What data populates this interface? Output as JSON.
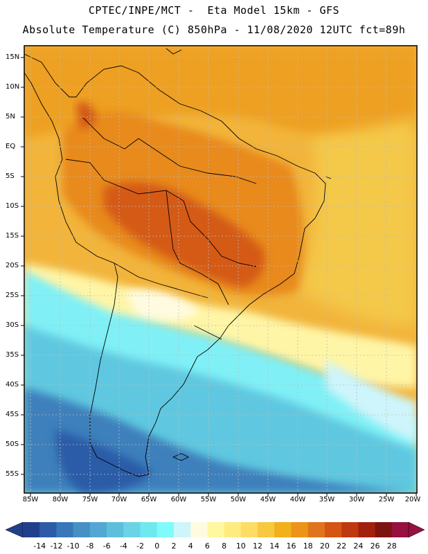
{
  "title_line1": "CPTEC/INPE/MCT -  Eta Model 15km - GFS",
  "title_line2": "Absolute Temperature (C) 850hPa - 11/08/2020 12UTC fct=89h",
  "lat_labels": [
    "15N",
    "10N",
    "5N",
    "EQ",
    "5S",
    "10S",
    "15S",
    "20S",
    "25S",
    "30S",
    "35S",
    "40S",
    "45S",
    "50S",
    "55S"
  ],
  "lon_labels": [
    "85W",
    "80W",
    "75W",
    "70W",
    "65W",
    "60W",
    "55W",
    "50W",
    "45W",
    "40W",
    "35W",
    "30W",
    "25W",
    "20W"
  ],
  "colorbar": {
    "labels": [
      "-14",
      "-12",
      "-10",
      "-8",
      "-6",
      "-4",
      "-2",
      "0",
      "2",
      "4",
      "6",
      "8",
      "10",
      "12",
      "14",
      "16",
      "18",
      "20",
      "22",
      "24",
      "26",
      "28"
    ],
    "colors": [
      "#223f8c",
      "#2c5ca8",
      "#3978b8",
      "#4690c6",
      "#52a8d2",
      "#5ebfdc",
      "#6ad4e6",
      "#6fe8ef",
      "#80fbfb",
      "#cdf5fb",
      "#fffbe0",
      "#fff8a0",
      "#ffec80",
      "#ffdc64",
      "#f7c840",
      "#f2b01c",
      "#eb9418",
      "#e0741c",
      "#d45414",
      "#c0380f",
      "#a2200c",
      "#7d1410",
      "#961040"
    ]
  },
  "icons": {
    "colorbar_left": "triangle-left-icon",
    "colorbar_right": "triangle-right-icon"
  }
}
